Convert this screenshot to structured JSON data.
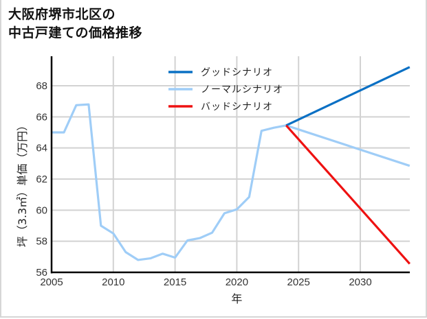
{
  "title": {
    "line1": "大阪府堺市北区の",
    "line2": "中古戸建ての価格推移"
  },
  "colors": {
    "good": "#0a70c4",
    "normal": "#9fcdf7",
    "bad": "#ee1111",
    "grid": "#d2d2d2",
    "axis": "#000000"
  },
  "chart_data": {
    "type": "line",
    "title": "大阪府堺市北区の中古戸建ての価格推移",
    "xlabel": "年",
    "ylabel": "坪（3.3㎡）単価（万円）",
    "xlim": [
      2005,
      2034
    ],
    "ylim": [
      56,
      69.3
    ],
    "xticks": [
      2005,
      2010,
      2015,
      2020,
      2025,
      2030
    ],
    "yticks": [
      56,
      58,
      60,
      62,
      64,
      66,
      68
    ],
    "grid": true,
    "legend_position": "upper center",
    "series": [
      {
        "name": "グッドシナリオ",
        "color": "#0a70c4",
        "x": [
          2024,
          2034
        ],
        "y": [
          65.45,
          69.2
        ]
      },
      {
        "name": "ノーマルシナリオ",
        "color": "#9fcdf7",
        "x": [
          2005,
          2006,
          2007,
          2008,
          2009,
          2010,
          2011,
          2012,
          2013,
          2014,
          2015,
          2016,
          2017,
          2018,
          2019,
          2020,
          2021,
          2022,
          2023,
          2024,
          2034
        ],
        "y": [
          65.0,
          65.0,
          66.75,
          66.8,
          59.0,
          58.5,
          57.3,
          56.8,
          56.9,
          57.2,
          56.95,
          58.05,
          58.2,
          58.55,
          59.8,
          60.05,
          60.85,
          65.1,
          65.3,
          65.45,
          62.85
        ]
      },
      {
        "name": "バッドシナリオ",
        "color": "#ee1111",
        "x": [
          2024,
          2034
        ],
        "y": [
          65.45,
          56.55
        ]
      }
    ]
  }
}
